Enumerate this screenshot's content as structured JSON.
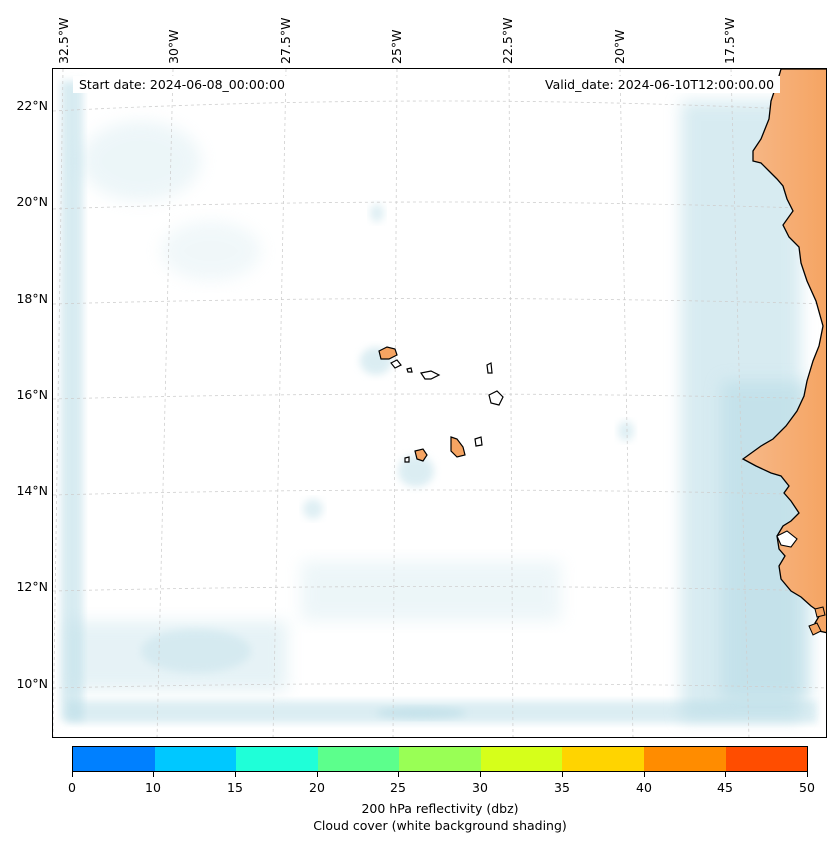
{
  "map": {
    "longitude_labels": [
      "32.5°W",
      "30°W",
      "27.5°W",
      "25°W",
      "22.5°W",
      "20°W",
      "17.5°W"
    ],
    "latitude_labels": [
      "22°N",
      "20°N",
      "18°N",
      "16°N",
      "14°N",
      "12°N",
      "10°N"
    ],
    "start_date_text": "Start date: 2024-06-08_00:00:00",
    "valid_date_text": "Valid_date: 2024-06-10T12:00:00.00",
    "land_color": "#f5a462",
    "cloud_color": "#b8dce6"
  },
  "colorbar": {
    "colors": [
      "#0080ff",
      "#00c8ff",
      "#1fffd8",
      "#5cff8c",
      "#99ff55",
      "#d6ff1a",
      "#ffd400",
      "#ff8c00",
      "#ff4d00"
    ],
    "tick_labels": [
      "0",
      "10",
      "15",
      "20",
      "25",
      "30",
      "35",
      "40",
      "45",
      "50"
    ],
    "title_line1": "200 hPa reflectivity (dbz)",
    "title_line2": "Cloud cover (white background shading)"
  }
}
